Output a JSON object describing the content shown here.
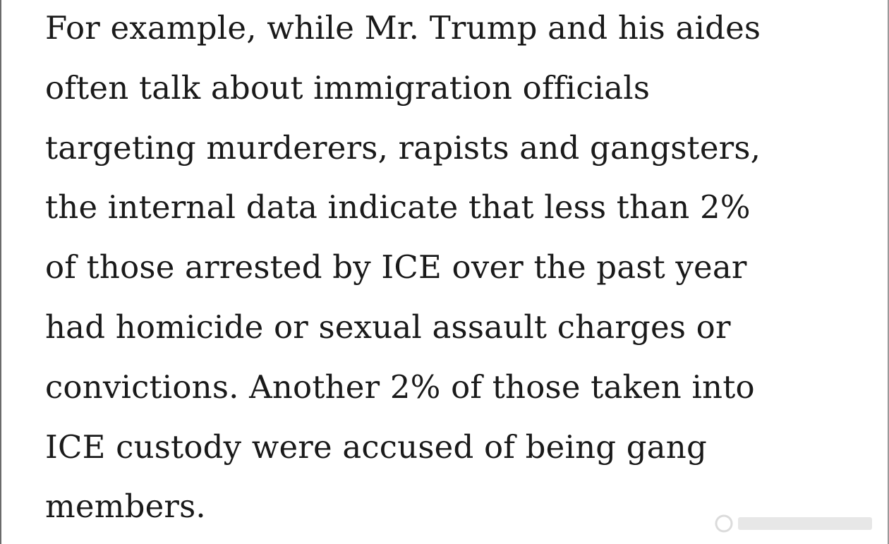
{
  "paragraph": {
    "lines": [
      "For example, while Mr. Trump and his aides",
      "often talk about immigration officials",
      "targeting murderers, rapists and gangsters,",
      "the internal data indicate that less than 2%",
      "of those arrested by ICE over the past year",
      "had homicide or sexual assault charges or",
      "convictions. Another 2% of those taken into",
      "ICE custody were accused of being gang",
      "members."
    ]
  }
}
